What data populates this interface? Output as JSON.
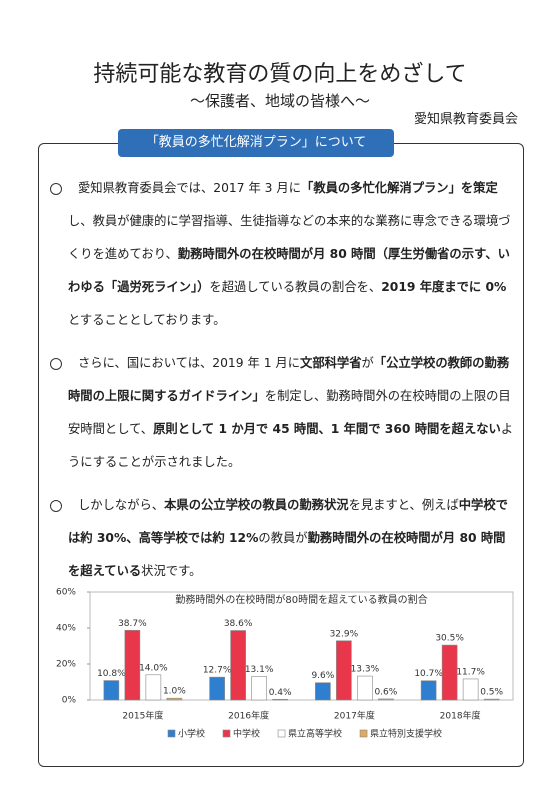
{
  "header": {
    "title": "持続可能な教育の質の向上をめざして",
    "subtitle": "〜保護者、地域の皆様へ〜",
    "organization": "愛知県教育委員会"
  },
  "section_title": "「教員の多忙化解消プラン」について",
  "paragraphs": [
    {
      "segments": [
        {
          "text": "愛知県教育委員会では、2017 年 3 月に",
          "bold": false
        },
        {
          "text": "「教員の多忙化解消プラン」を策定",
          "bold": true
        },
        {
          "text": "し、教員が健康的に学習指導、生徒指導などの本来的な業務に専念できる環境づくりを進めており、",
          "bold": false
        },
        {
          "text": "勤務時間外の在校時間が月 80 時間（厚生労働省の示す、いわゆる「過労死ライン」）",
          "bold": true
        },
        {
          "text": "を超過している教員の割合を、",
          "bold": false
        },
        {
          "text": "2019 年度までに 0%",
          "bold": true
        },
        {
          "text": "とすることとしております。",
          "bold": false
        }
      ]
    },
    {
      "segments": [
        {
          "text": "さらに、国においては、2019 年 1 月に",
          "bold": false
        },
        {
          "text": "文部科学省",
          "bold": true
        },
        {
          "text": "が",
          "bold": false
        },
        {
          "text": "「公立学校の教師の勤務時間の上限に関するガイドライン」",
          "bold": true
        },
        {
          "text": "を制定し、勤務時間外の在校時間の上限の目安時間として、",
          "bold": false
        },
        {
          "text": "原則として 1 か月で 45 時間、1 年間で 360 時間を超えない",
          "bold": true
        },
        {
          "text": "ようにすることが示されました。",
          "bold": false
        }
      ]
    },
    {
      "segments": [
        {
          "text": "しかしながら、",
          "bold": false
        },
        {
          "text": "本県の公立学校の教員の勤務状況",
          "bold": true
        },
        {
          "text": "を見ますと、例えば",
          "bold": false
        },
        {
          "text": "中学校では約 30%、高等学校では約 12%",
          "bold": true
        },
        {
          "text": "の教員が",
          "bold": false
        },
        {
          "text": "勤務時間外の在校時間が月 80 時間を超えている",
          "bold": true
        },
        {
          "text": "状況です。",
          "bold": false
        }
      ]
    }
  ],
  "chart_data": {
    "type": "bar",
    "title": "勤務時間外の在校時間が80時間を超えている教員の割合",
    "categories": [
      "2015年度",
      "2016年度",
      "2017年度",
      "2018年度"
    ],
    "series": [
      {
        "name": "小学校",
        "color": "#2f7fd0",
        "values": [
          10.8,
          12.7,
          9.6,
          10.7
        ],
        "value_labels": [
          "10.8%",
          "12.7%",
          "9.6%",
          "10.7%"
        ]
      },
      {
        "name": "中学校",
        "color": "#e8374a",
        "values": [
          38.7,
          38.6,
          32.9,
          30.5
        ],
        "value_labels": [
          "38.7%",
          "38.6%",
          "32.9%",
          "30.5%"
        ]
      },
      {
        "name": "県立高等学校",
        "color": "#ffffff",
        "values": [
          14.0,
          13.1,
          13.3,
          11.7
        ],
        "value_labels": [
          "14.0%",
          "13.1%",
          "13.3%",
          "11.7%"
        ]
      },
      {
        "name": "県立特別支援学校",
        "color": "#e0a860",
        "values": [
          1.0,
          0.4,
          0.6,
          0.5
        ],
        "value_labels": [
          "1.0%",
          "0.4%",
          "0.6%",
          "0.5%"
        ]
      }
    ],
    "ylim": [
      0,
      60
    ],
    "yticks": [
      {
        "value": 0,
        "label": "0%"
      },
      {
        "value": 20,
        "label": "20%"
      },
      {
        "value": 40,
        "label": "40%"
      },
      {
        "value": 60,
        "label": "60%"
      }
    ],
    "grid": false
  }
}
